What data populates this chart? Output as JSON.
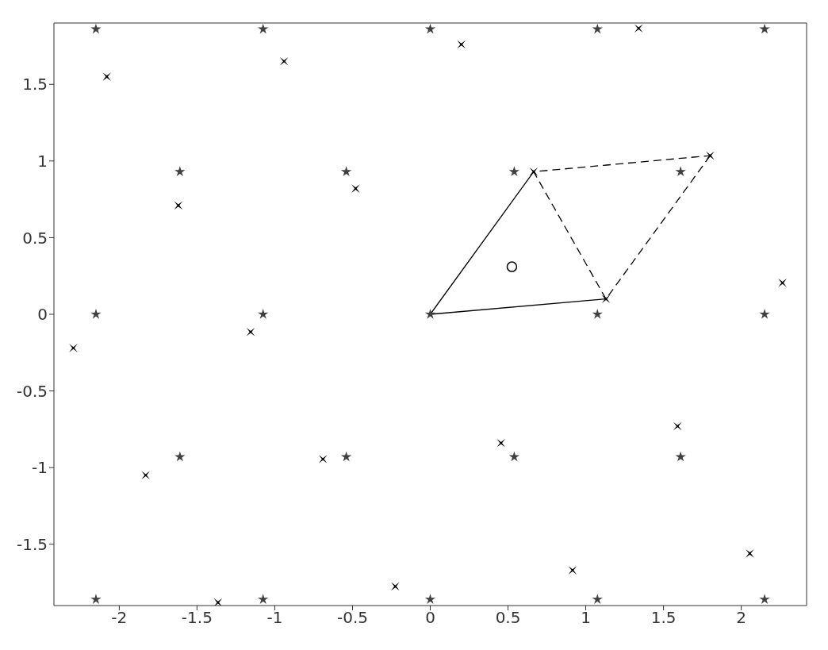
{
  "chart_data": {
    "type": "scatter",
    "xlim": [
      -2.42,
      2.42
    ],
    "ylim": [
      -1.9,
      1.9
    ],
    "xticks": [
      -2,
      -1.5,
      -1,
      -0.5,
      0,
      0.5,
      1,
      1.5,
      2
    ],
    "yticks": [
      -1.5,
      -1,
      -0.5,
      0,
      0.5,
      1,
      1.5
    ],
    "grid": false,
    "legend": false,
    "series": [
      {
        "type": "line",
        "marker": "none",
        "line_style": "solid",
        "color": "#000000",
        "x": [
          0.665,
          0,
          1.13
        ],
        "values": [
          0.93,
          0,
          0.1
        ]
      },
      {
        "type": "line",
        "marker": "none",
        "line_style": "dashed",
        "color": "#000000",
        "x": [
          1.13,
          0.665,
          1.8
        ],
        "values": [
          0.1,
          0.93,
          1.035
        ]
      },
      {
        "type": "line",
        "marker": "none",
        "line_style": "dashed",
        "color": "#000000",
        "x": [
          1.8,
          1.13
        ],
        "values": [
          1.035,
          0.1
        ]
      },
      {
        "type": "scatter",
        "marker": "star",
        "color": "#404040",
        "x": [
          -2.15,
          -1.075,
          0,
          1.075,
          2.15,
          -1.61,
          -0.54,
          0.54,
          1.61,
          -1.61,
          -0.54,
          0.54,
          1.61,
          -2.15,
          -1.075,
          0,
          1.075,
          2.15,
          -2.15,
          -1.075,
          0,
          1.075,
          2.15
        ],
        "values": [
          0,
          0,
          0,
          0,
          0,
          0.93,
          0.93,
          0.93,
          0.93,
          -0.93,
          -0.93,
          -0.93,
          -0.93,
          1.86,
          1.86,
          1.86,
          1.86,
          1.86,
          -1.86,
          -1.86,
          -1.86,
          -1.86,
          -1.86
        ]
      },
      {
        "type": "scatter",
        "marker": "cross",
        "color": "#000000",
        "x": [
          -2.295,
          -2.08,
          -1.83,
          -1.62,
          -1.365,
          -1.155,
          -0.94,
          -0.69,
          -0.48,
          -0.225,
          0.2,
          0.455,
          0.665,
          0.915,
          1.13,
          1.34,
          1.59,
          1.8,
          2.055,
          2.265
        ],
        "values": [
          -0.22,
          1.55,
          -1.05,
          0.71,
          -1.88,
          -0.115,
          1.65,
          -0.945,
          0.82,
          -1.775,
          1.76,
          -0.84,
          0.93,
          -1.67,
          0.1,
          1.865,
          -0.73,
          1.035,
          -1.56,
          0.205
        ]
      },
      {
        "type": "scatter",
        "marker": "circle",
        "color": "#000000",
        "x": [
          0.525
        ],
        "values": [
          0.31
        ]
      }
    ]
  }
}
